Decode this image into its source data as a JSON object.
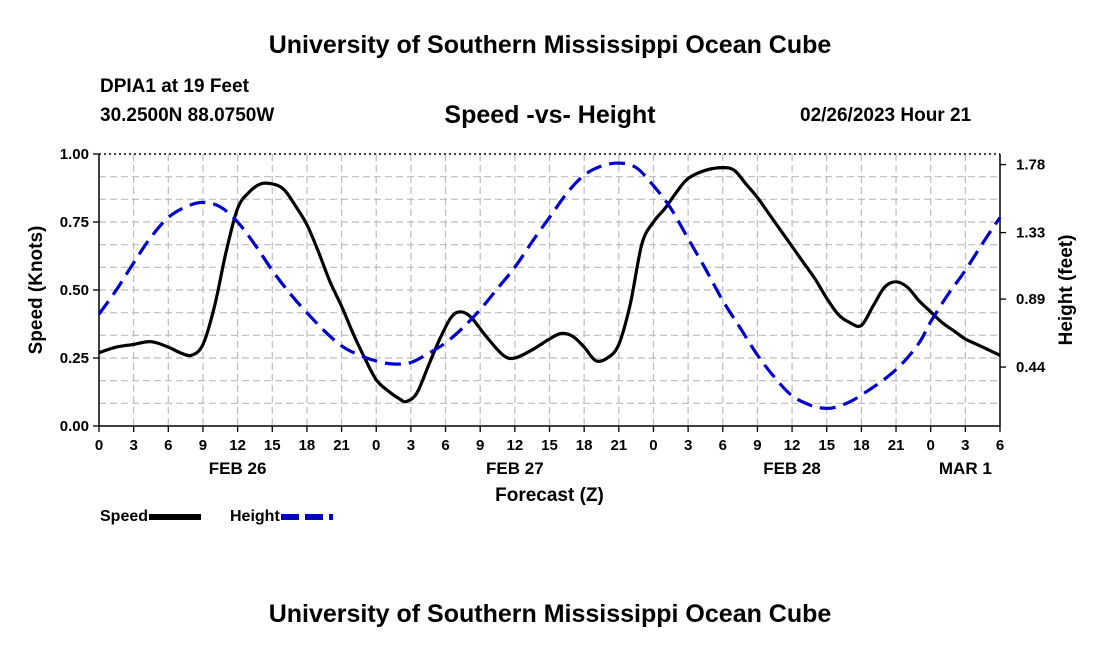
{
  "header": {
    "title_top": "University of Southern Mississippi Ocean Cube",
    "title_bottom": "University of Southern Mississippi Ocean Cube",
    "station": "DPIA1 at 19 Feet",
    "coordinates": "30.2500N  88.0750W",
    "subtitle": "Speed -vs- Height",
    "datetime": "02/26/2023 Hour 21"
  },
  "legend": {
    "speed_label": "Speed",
    "height_label": "Height",
    "speed_color": "#000000",
    "height_color": "#0000cc"
  },
  "chart_data": {
    "type": "line",
    "title": "Speed -vs- Height",
    "xlabel": "Forecast (Z)",
    "ylabel": "Speed (Knots)",
    "y2label": "Height (feet)",
    "xlim": [
      0,
      78
    ],
    "ylim": [
      0,
      1.0
    ],
    "y2lim": [
      0.05,
      1.85
    ],
    "grid": true,
    "x_tick_values": [
      0,
      3,
      6,
      9,
      12,
      15,
      18,
      21,
      24,
      27,
      30,
      33,
      36,
      39,
      42,
      45,
      48,
      51,
      54,
      57,
      60,
      63,
      66,
      69,
      72,
      75,
      78
    ],
    "x_tick_labels": [
      "0",
      "3",
      "6",
      "9",
      "12",
      "15",
      "18",
      "21",
      "0",
      "3",
      "6",
      "9",
      "12",
      "15",
      "18",
      "21",
      "0",
      "3",
      "6",
      "9",
      "12",
      "15",
      "18",
      "21",
      "0",
      "3",
      "6"
    ],
    "date_labels": [
      {
        "x": 12,
        "label": "FEB 26"
      },
      {
        "x": 36,
        "label": "FEB 27"
      },
      {
        "x": 60,
        "label": "FEB 28"
      },
      {
        "x": 75,
        "label": "MAR 1"
      }
    ],
    "y_ticks": [
      0.0,
      0.25,
      0.5,
      0.75,
      1.0
    ],
    "y_tick_labels": [
      "0.00",
      "0.25",
      "0.50",
      "0.75",
      "1.00"
    ],
    "y2_ticks": [
      0.44,
      0.89,
      1.33,
      1.78
    ],
    "y2_tick_labels": [
      "0.44",
      "0.89",
      "1.33",
      "1.78"
    ],
    "series": [
      {
        "name": "Speed",
        "axis": "left",
        "color": "#000000",
        "dash": false,
        "points": [
          [
            0,
            0.27
          ],
          [
            1.5,
            0.29
          ],
          [
            3,
            0.3
          ],
          [
            4.5,
            0.31
          ],
          [
            6,
            0.29
          ],
          [
            7,
            0.27
          ],
          [
            8,
            0.26
          ],
          [
            9,
            0.3
          ],
          [
            10,
            0.44
          ],
          [
            11,
            0.64
          ],
          [
            12,
            0.8
          ],
          [
            13,
            0.86
          ],
          [
            14,
            0.89
          ],
          [
            15,
            0.89
          ],
          [
            16,
            0.87
          ],
          [
            17,
            0.81
          ],
          [
            18,
            0.74
          ],
          [
            19,
            0.64
          ],
          [
            20,
            0.53
          ],
          [
            21,
            0.44
          ],
          [
            22,
            0.34
          ],
          [
            23,
            0.25
          ],
          [
            24,
            0.17
          ],
          [
            25,
            0.13
          ],
          [
            26,
            0.1
          ],
          [
            26.6,
            0.09
          ],
          [
            27.5,
            0.12
          ],
          [
            28.5,
            0.22
          ],
          [
            29.5,
            0.32
          ],
          [
            30.5,
            0.4
          ],
          [
            31.3,
            0.42
          ],
          [
            32.2,
            0.4
          ],
          [
            33.5,
            0.33
          ],
          [
            35,
            0.26
          ],
          [
            36,
            0.25
          ],
          [
            37.5,
            0.28
          ],
          [
            39,
            0.32
          ],
          [
            40,
            0.34
          ],
          [
            41,
            0.33
          ],
          [
            42,
            0.29
          ],
          [
            43,
            0.24
          ],
          [
            44,
            0.25
          ],
          [
            45,
            0.3
          ],
          [
            46,
            0.45
          ],
          [
            47,
            0.67
          ],
          [
            48,
            0.75
          ],
          [
            49,
            0.8
          ],
          [
            50,
            0.86
          ],
          [
            51,
            0.91
          ],
          [
            52.5,
            0.94
          ],
          [
            54,
            0.95
          ],
          [
            55,
            0.94
          ],
          [
            56,
            0.89
          ],
          [
            57,
            0.84
          ],
          [
            58,
            0.78
          ],
          [
            59,
            0.72
          ],
          [
            60,
            0.66
          ],
          [
            61,
            0.6
          ],
          [
            62,
            0.54
          ],
          [
            63,
            0.47
          ],
          [
            64,
            0.41
          ],
          [
            65,
            0.38
          ],
          [
            66,
            0.37
          ],
          [
            67,
            0.44
          ],
          [
            68,
            0.51
          ],
          [
            69,
            0.53
          ],
          [
            70,
            0.51
          ],
          [
            71,
            0.46
          ],
          [
            72,
            0.42
          ],
          [
            73,
            0.38
          ],
          [
            74,
            0.35
          ],
          [
            75,
            0.32
          ],
          [
            76,
            0.3
          ],
          [
            77,
            0.28
          ],
          [
            78,
            0.26
          ]
        ]
      },
      {
        "name": "Height",
        "axis": "right",
        "color": "#0000cc",
        "dash": true,
        "points": [
          [
            0,
            0.79
          ],
          [
            1.5,
            0.95
          ],
          [
            3,
            1.13
          ],
          [
            4.5,
            1.3
          ],
          [
            6,
            1.43
          ],
          [
            7.5,
            1.5
          ],
          [
            9,
            1.53
          ],
          [
            10.5,
            1.5
          ],
          [
            12,
            1.4
          ],
          [
            13.5,
            1.25
          ],
          [
            15,
            1.08
          ],
          [
            16.5,
            0.93
          ],
          [
            18,
            0.8
          ],
          [
            19.5,
            0.68
          ],
          [
            21,
            0.58
          ],
          [
            22.5,
            0.52
          ],
          [
            24,
            0.48
          ],
          [
            25.5,
            0.46
          ],
          [
            27,
            0.47
          ],
          [
            28.5,
            0.53
          ],
          [
            30,
            0.6
          ],
          [
            31.5,
            0.7
          ],
          [
            33,
            0.82
          ],
          [
            34.5,
            0.96
          ],
          [
            36,
            1.1
          ],
          [
            37.5,
            1.27
          ],
          [
            39,
            1.43
          ],
          [
            40.5,
            1.59
          ],
          [
            42,
            1.71
          ],
          [
            43.5,
            1.77
          ],
          [
            45,
            1.79
          ],
          [
            46.5,
            1.76
          ],
          [
            48,
            1.64
          ],
          [
            49.5,
            1.49
          ],
          [
            51,
            1.29
          ],
          [
            52.5,
            1.09
          ],
          [
            54,
            0.88
          ],
          [
            55.5,
            0.7
          ],
          [
            57,
            0.52
          ],
          [
            58.5,
            0.37
          ],
          [
            60,
            0.25
          ],
          [
            61.5,
            0.19
          ],
          [
            62.5,
            0.17
          ],
          [
            63.5,
            0.17
          ],
          [
            65,
            0.21
          ],
          [
            66.5,
            0.28
          ],
          [
            68,
            0.36
          ],
          [
            69.5,
            0.46
          ],
          [
            71,
            0.6
          ],
          [
            72,
            0.74
          ],
          [
            73.5,
            0.92
          ],
          [
            75,
            1.08
          ],
          [
            76.5,
            1.26
          ],
          [
            78,
            1.43
          ]
        ]
      }
    ]
  }
}
